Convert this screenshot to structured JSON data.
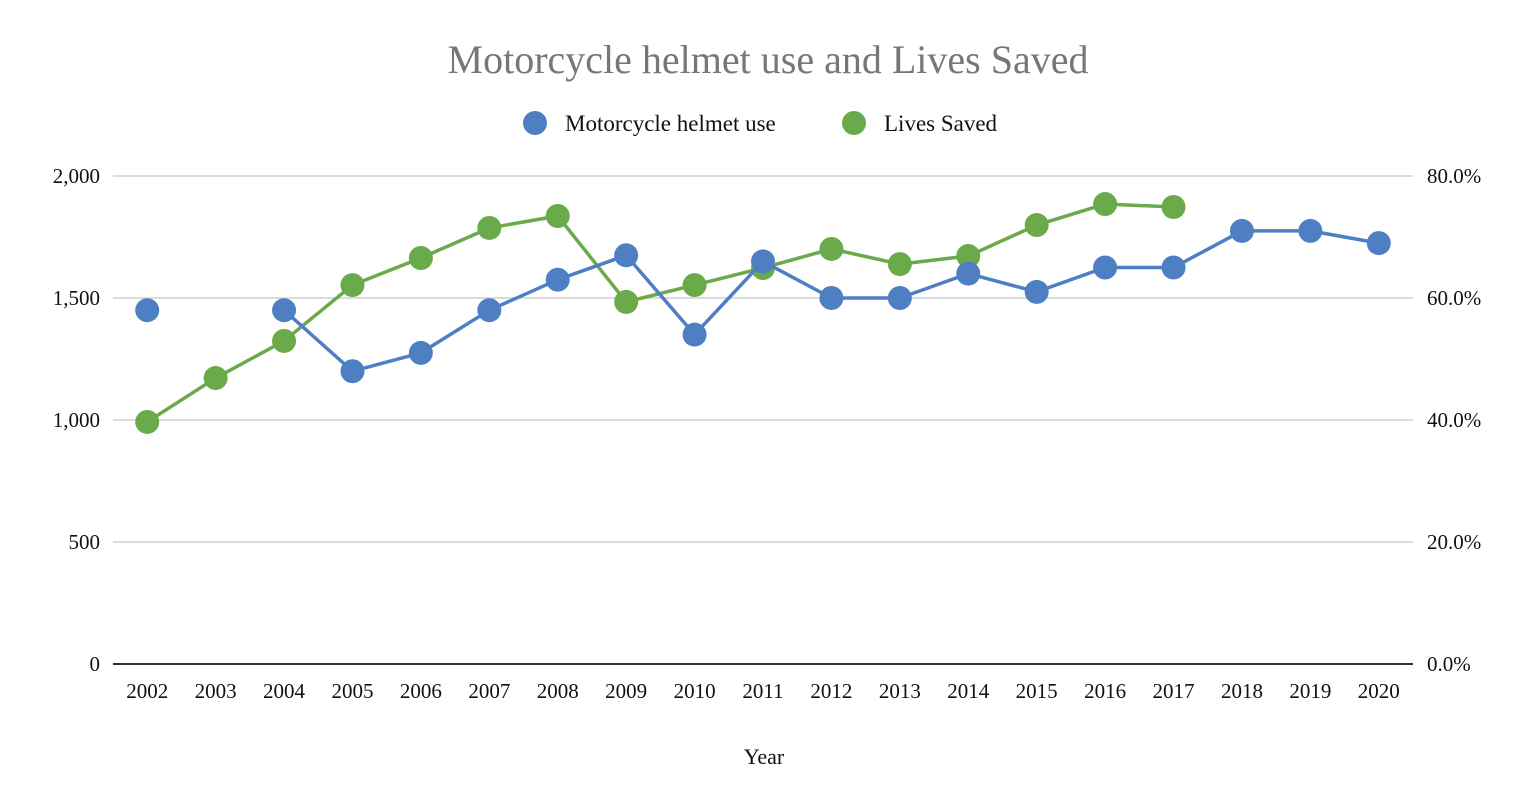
{
  "chart_data": {
    "type": "line",
    "title": "Motorcycle helmet use and Lives Saved",
    "xlabel": "Year",
    "ylabel": "",
    "y2label": "",
    "categories": [
      "2002",
      "2003",
      "2004",
      "2005",
      "2006",
      "2007",
      "2008",
      "2009",
      "2010",
      "2011",
      "2012",
      "2013",
      "2014",
      "2015",
      "2016",
      "2017",
      "2018",
      "2019",
      "2020"
    ],
    "ylim": [
      0,
      2000
    ],
    "y2lim": [
      0,
      80
    ],
    "yticks": [
      "0",
      "500",
      "1,000",
      "1,500",
      "2,000"
    ],
    "y2ticks": [
      "0.0%",
      "20.0%",
      "40.0%",
      "60.0%",
      "80.0%"
    ],
    "grid": true,
    "legend_position": "top",
    "series": [
      {
        "name": "Motorcycle helmet use",
        "axis": "right",
        "unit": "%",
        "color": "#4e7fc2",
        "values": [
          58,
          null,
          58,
          48,
          51,
          58,
          63,
          67,
          54,
          66,
          60,
          60,
          64,
          61,
          65,
          65,
          71,
          71,
          69
        ]
      },
      {
        "name": "Lives Saved",
        "axis": "left",
        "color": "#6aaa4b",
        "values": [
          992,
          1172,
          1324,
          1553,
          1664,
          1787,
          1836,
          1484,
          1553,
          1623,
          1701,
          1639,
          1672,
          1799,
          1885,
          1873,
          null,
          null,
          null
        ]
      }
    ]
  }
}
